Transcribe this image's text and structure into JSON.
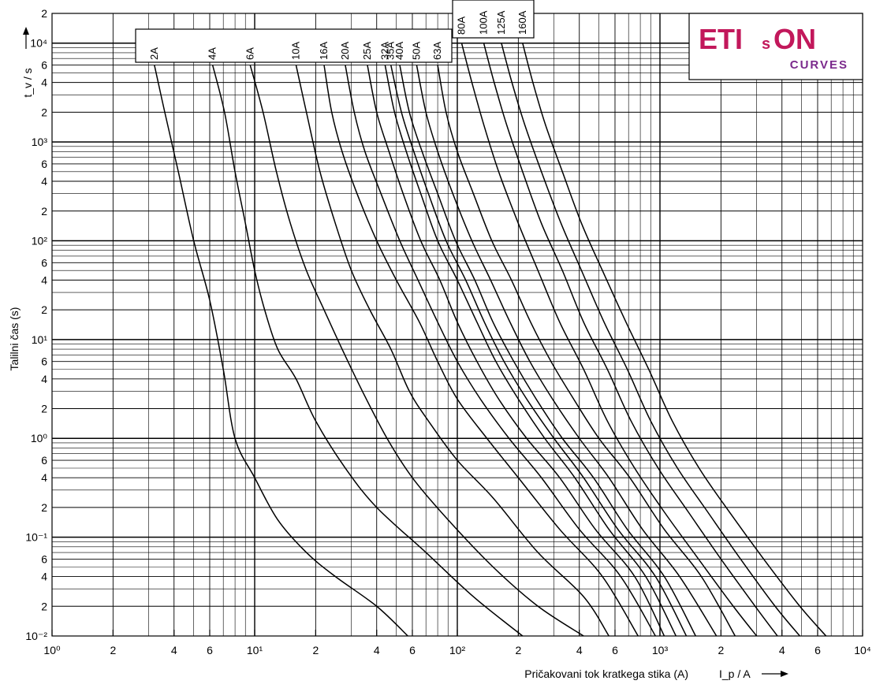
{
  "brand": {
    "name_left": "ETI",
    "name_s": "s",
    "name_right": "ON",
    "subtitle": "CURVES",
    "color_main": "#c2185b",
    "color_sub": "#7b2a8c"
  },
  "chart_data": {
    "type": "line",
    "xscale": "log",
    "yscale": "log",
    "xlim": [
      1,
      10000
    ],
    "ylim": [
      0.01,
      20000
    ],
    "grid": true,
    "ylabel_vertical": "Talilni čas (s)",
    "ylabel_unit": "t_v / s",
    "xlabel": "Pričakovani tok kratkega stika (A)",
    "xlabel_unit": "I_p / A",
    "y_tick_labels": [
      {
        "v": 0.01,
        "t": "10⁻²"
      },
      {
        "v": 0.02,
        "t": "2"
      },
      {
        "v": 0.04,
        "t": "4"
      },
      {
        "v": 0.06,
        "t": "6"
      },
      {
        "v": 0.1,
        "t": "10⁻¹"
      },
      {
        "v": 0.2,
        "t": "2"
      },
      {
        "v": 0.4,
        "t": "4"
      },
      {
        "v": 0.6,
        "t": "6"
      },
      {
        "v": 1,
        "t": "10⁰"
      },
      {
        "v": 2,
        "t": "2"
      },
      {
        "v": 4,
        "t": "4"
      },
      {
        "v": 6,
        "t": "6"
      },
      {
        "v": 10,
        "t": "10¹"
      },
      {
        "v": 20,
        "t": "2"
      },
      {
        "v": 40,
        "t": "4"
      },
      {
        "v": 60,
        "t": "6"
      },
      {
        "v": 100,
        "t": "10²"
      },
      {
        "v": 200,
        "t": "2"
      },
      {
        "v": 400,
        "t": "4"
      },
      {
        "v": 600,
        "t": "6"
      },
      {
        "v": 1000,
        "t": "10³"
      },
      {
        "v": 2000,
        "t": "2"
      },
      {
        "v": 4000,
        "t": "4"
      },
      {
        "v": 6000,
        "t": "6"
      },
      {
        "v": 10000,
        "t": "10⁴"
      },
      {
        "v": 20000,
        "t": "2"
      }
    ],
    "x_tick_labels": [
      {
        "v": 1,
        "t": "10⁰"
      },
      {
        "v": 2,
        "t": "2"
      },
      {
        "v": 4,
        "t": "4"
      },
      {
        "v": 6,
        "t": "6"
      },
      {
        "v": 10,
        "t": "10¹"
      },
      {
        "v": 20,
        "t": "2"
      },
      {
        "v": 40,
        "t": "4"
      },
      {
        "v": 60,
        "t": "6"
      },
      {
        "v": 100,
        "t": "10²"
      },
      {
        "v": 200,
        "t": "2"
      },
      {
        "v": 400,
        "t": "4"
      },
      {
        "v": 600,
        "t": "6"
      },
      {
        "v": 1000,
        "t": "10³"
      },
      {
        "v": 2000,
        "t": "2"
      },
      {
        "v": 4000,
        "t": "4"
      },
      {
        "v": 6000,
        "t": "6"
      },
      {
        "v": 10000,
        "t": "10⁴"
      }
    ],
    "series": [
      {
        "name": "2A",
        "points": [
          [
            3.2,
            6000
          ],
          [
            3.6,
            2000
          ],
          [
            4.2,
            500
          ],
          [
            5,
            100
          ],
          [
            6,
            25
          ],
          [
            7,
            5
          ],
          [
            8,
            1
          ],
          [
            10,
            0.4
          ],
          [
            13,
            0.15
          ],
          [
            18,
            0.07
          ],
          [
            25,
            0.04
          ],
          [
            40,
            0.02
          ],
          [
            57,
            0.01
          ]
        ]
      },
      {
        "name": "4A",
        "points": [
          [
            6.2,
            6000
          ],
          [
            7.1,
            2000
          ],
          [
            8,
            500
          ],
          [
            9,
            150
          ],
          [
            10,
            50
          ],
          [
            11.2,
            20
          ],
          [
            13,
            8
          ],
          [
            16,
            4
          ],
          [
            20,
            1.5
          ],
          [
            28,
            0.5
          ],
          [
            40,
            0.2
          ],
          [
            70,
            0.07
          ],
          [
            120,
            0.025
          ],
          [
            210,
            0.01
          ]
        ]
      },
      {
        "name": "6A",
        "points": [
          [
            9.5,
            6000
          ],
          [
            11,
            2000
          ],
          [
            12.8,
            500
          ],
          [
            15,
            150
          ],
          [
            18,
            50
          ],
          [
            22,
            20
          ],
          [
            27,
            8
          ],
          [
            34,
            3
          ],
          [
            45,
            1
          ],
          [
            60,
            0.4
          ],
          [
            90,
            0.15
          ],
          [
            150,
            0.05
          ],
          [
            250,
            0.02
          ],
          [
            420,
            0.01
          ]
        ]
      },
      {
        "name": "10A",
        "points": [
          [
            16,
            6000
          ],
          [
            18,
            2000
          ],
          [
            21,
            500
          ],
          [
            25,
            150
          ],
          [
            30,
            50
          ],
          [
            37,
            20
          ],
          [
            47,
            8
          ],
          [
            58,
            3
          ],
          [
            72,
            1.5
          ],
          [
            100,
            0.6
          ],
          [
            150,
            0.25
          ],
          [
            250,
            0.07
          ],
          [
            420,
            0.025
          ],
          [
            560,
            0.01
          ]
        ]
      },
      {
        "name": "16A",
        "points": [
          [
            22,
            6000
          ],
          [
            24,
            2000
          ],
          [
            27,
            800
          ],
          [
            32,
            300
          ],
          [
            40,
            100
          ],
          [
            50,
            40
          ],
          [
            65,
            15
          ],
          [
            80,
            6
          ],
          [
            100,
            2.5
          ],
          [
            140,
            1
          ],
          [
            200,
            0.4
          ],
          [
            320,
            0.12
          ],
          [
            520,
            0.04
          ],
          [
            780,
            0.01
          ]
        ]
      },
      {
        "name": "20A",
        "points": [
          [
            28,
            6000
          ],
          [
            31,
            2000
          ],
          [
            35,
            800
          ],
          [
            42,
            300
          ],
          [
            52,
            100
          ],
          [
            64,
            40
          ],
          [
            80,
            15
          ],
          [
            100,
            6
          ],
          [
            130,
            2.5
          ],
          [
            180,
            1
          ],
          [
            260,
            0.4
          ],
          [
            400,
            0.12
          ],
          [
            640,
            0.04
          ],
          [
            950,
            0.01
          ]
        ]
      },
      {
        "name": "25A",
        "points": [
          [
            36,
            6000
          ],
          [
            40,
            2000
          ],
          [
            46,
            800
          ],
          [
            54,
            300
          ],
          [
            66,
            100
          ],
          [
            82,
            40
          ],
          [
            100,
            15
          ],
          [
            125,
            6
          ],
          [
            160,
            2.5
          ],
          [
            220,
            1
          ],
          [
            320,
            0.4
          ],
          [
            480,
            0.12
          ],
          [
            750,
            0.04
          ],
          [
            1050,
            0.01
          ]
        ]
      },
      {
        "name": "32A",
        "points": [
          [
            44,
            6000
          ],
          [
            49,
            2000
          ],
          [
            56,
            800
          ],
          [
            66,
            300
          ],
          [
            80,
            100
          ],
          [
            100,
            40
          ],
          [
            125,
            15
          ],
          [
            155,
            6
          ],
          [
            200,
            2.5
          ],
          [
            270,
            1
          ],
          [
            380,
            0.4
          ],
          [
            560,
            0.12
          ],
          [
            850,
            0.04
          ],
          [
            1200,
            0.01
          ]
        ]
      },
      {
        "name": "35A",
        "points": [
          [
            47,
            6000
          ],
          [
            53,
            2000
          ],
          [
            61,
            800
          ],
          [
            72,
            300
          ],
          [
            88,
            100
          ],
          [
            110,
            40
          ],
          [
            136,
            15
          ],
          [
            170,
            6
          ],
          [
            220,
            2.5
          ],
          [
            300,
            1
          ],
          [
            420,
            0.4
          ],
          [
            620,
            0.12
          ],
          [
            950,
            0.04
          ],
          [
            1350,
            0.01
          ]
        ]
      },
      {
        "name": "40A",
        "points": [
          [
            52,
            6000
          ],
          [
            58,
            2000
          ],
          [
            67,
            800
          ],
          [
            80,
            300
          ],
          [
            98,
            100
          ],
          [
            122,
            40
          ],
          [
            150,
            15
          ],
          [
            190,
            6
          ],
          [
            245,
            2.5
          ],
          [
            330,
            1
          ],
          [
            470,
            0.4
          ],
          [
            690,
            0.12
          ],
          [
            1050,
            0.04
          ],
          [
            1500,
            0.01
          ]
        ]
      },
      {
        "name": "50A",
        "points": [
          [
            63,
            6000
          ],
          [
            70,
            2000
          ],
          [
            80,
            800
          ],
          [
            95,
            300
          ],
          [
            118,
            100
          ],
          [
            146,
            40
          ],
          [
            182,
            15
          ],
          [
            228,
            6
          ],
          [
            295,
            2.5
          ],
          [
            400,
            1
          ],
          [
            560,
            0.4
          ],
          [
            820,
            0.12
          ],
          [
            1250,
            0.04
          ],
          [
            1900,
            0.01
          ]
        ]
      },
      {
        "name": "63A",
        "points": [
          [
            80,
            6000
          ],
          [
            88,
            2000
          ],
          [
            100,
            800
          ],
          [
            120,
            300
          ],
          [
            148,
            100
          ],
          [
            185,
            40
          ],
          [
            230,
            15
          ],
          [
            290,
            6
          ],
          [
            375,
            2.5
          ],
          [
            500,
            1
          ],
          [
            710,
            0.4
          ],
          [
            1050,
            0.12
          ],
          [
            1600,
            0.04
          ],
          [
            2350,
            0.01
          ]
        ]
      },
      {
        "name": "80A",
        "points": [
          [
            105,
            10000
          ],
          [
            118,
            4000
          ],
          [
            135,
            1500
          ],
          [
            160,
            500
          ],
          [
            200,
            150
          ],
          [
            250,
            50
          ],
          [
            320,
            15
          ],
          [
            420,
            5
          ],
          [
            550,
            1.5
          ],
          [
            750,
            0.5
          ],
          [
            1050,
            0.18
          ],
          [
            1550,
            0.06
          ],
          [
            2300,
            0.02
          ],
          [
            3000,
            0.01
          ]
        ]
      },
      {
        "name": "100A",
        "points": [
          [
            135,
            10000
          ],
          [
            152,
            4000
          ],
          [
            175,
            1500
          ],
          [
            210,
            500
          ],
          [
            260,
            150
          ],
          [
            330,
            50
          ],
          [
            420,
            15
          ],
          [
            550,
            5
          ],
          [
            720,
            1.5
          ],
          [
            980,
            0.5
          ],
          [
            1380,
            0.18
          ],
          [
            2000,
            0.06
          ],
          [
            2950,
            0.02
          ],
          [
            3800,
            0.01
          ]
        ]
      },
      {
        "name": "125A",
        "points": [
          [
            165,
            10000
          ],
          [
            186,
            4000
          ],
          [
            215,
            1500
          ],
          [
            260,
            500
          ],
          [
            325,
            150
          ],
          [
            410,
            50
          ],
          [
            530,
            15
          ],
          [
            690,
            5
          ],
          [
            900,
            1.5
          ],
          [
            1220,
            0.5
          ],
          [
            1720,
            0.18
          ],
          [
            2500,
            0.06
          ],
          [
            3700,
            0.02
          ],
          [
            4900,
            0.01
          ]
        ]
      },
      {
        "name": "160A",
        "points": [
          [
            210,
            10000
          ],
          [
            236,
            4000
          ],
          [
            272,
            1500
          ],
          [
            330,
            500
          ],
          [
            410,
            150
          ],
          [
            520,
            50
          ],
          [
            680,
            15
          ],
          [
            880,
            5
          ],
          [
            1150,
            1.5
          ],
          [
            1560,
            0.5
          ],
          [
            2200,
            0.18
          ],
          [
            3250,
            0.06
          ],
          [
            4900,
            0.02
          ],
          [
            6600,
            0.01
          ]
        ]
      }
    ]
  }
}
